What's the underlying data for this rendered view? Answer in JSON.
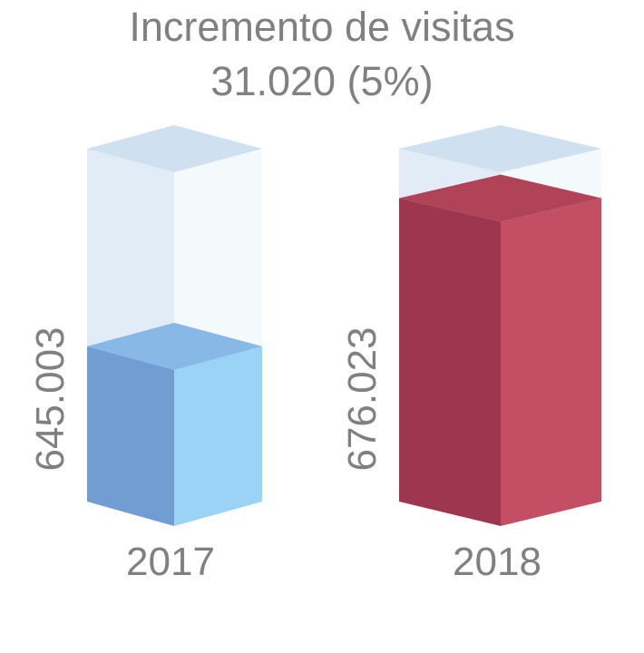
{
  "chart_data": {
    "type": "bar",
    "title": "Incremento de visitas",
    "subtitle": "31.020 (5%)",
    "categories": [
      "2017",
      "2018"
    ],
    "values": [
      645003,
      676023
    ],
    "value_labels": [
      "645.003",
      "676.023"
    ],
    "fill_fraction": [
      0.44,
      0.86
    ],
    "colors": {
      "2017": {
        "front": "#729dd3",
        "side": "#9ad3f5",
        "top": "#88b8e6"
      },
      "2018": {
        "front": "#9e364f",
        "side": "#c44f64",
        "top": "#b04358"
      },
      "ghost": {
        "front": "#e2ecf6",
        "side": "#f4f9fb",
        "top": "#cfe0f1"
      },
      "text": "#808080"
    }
  }
}
